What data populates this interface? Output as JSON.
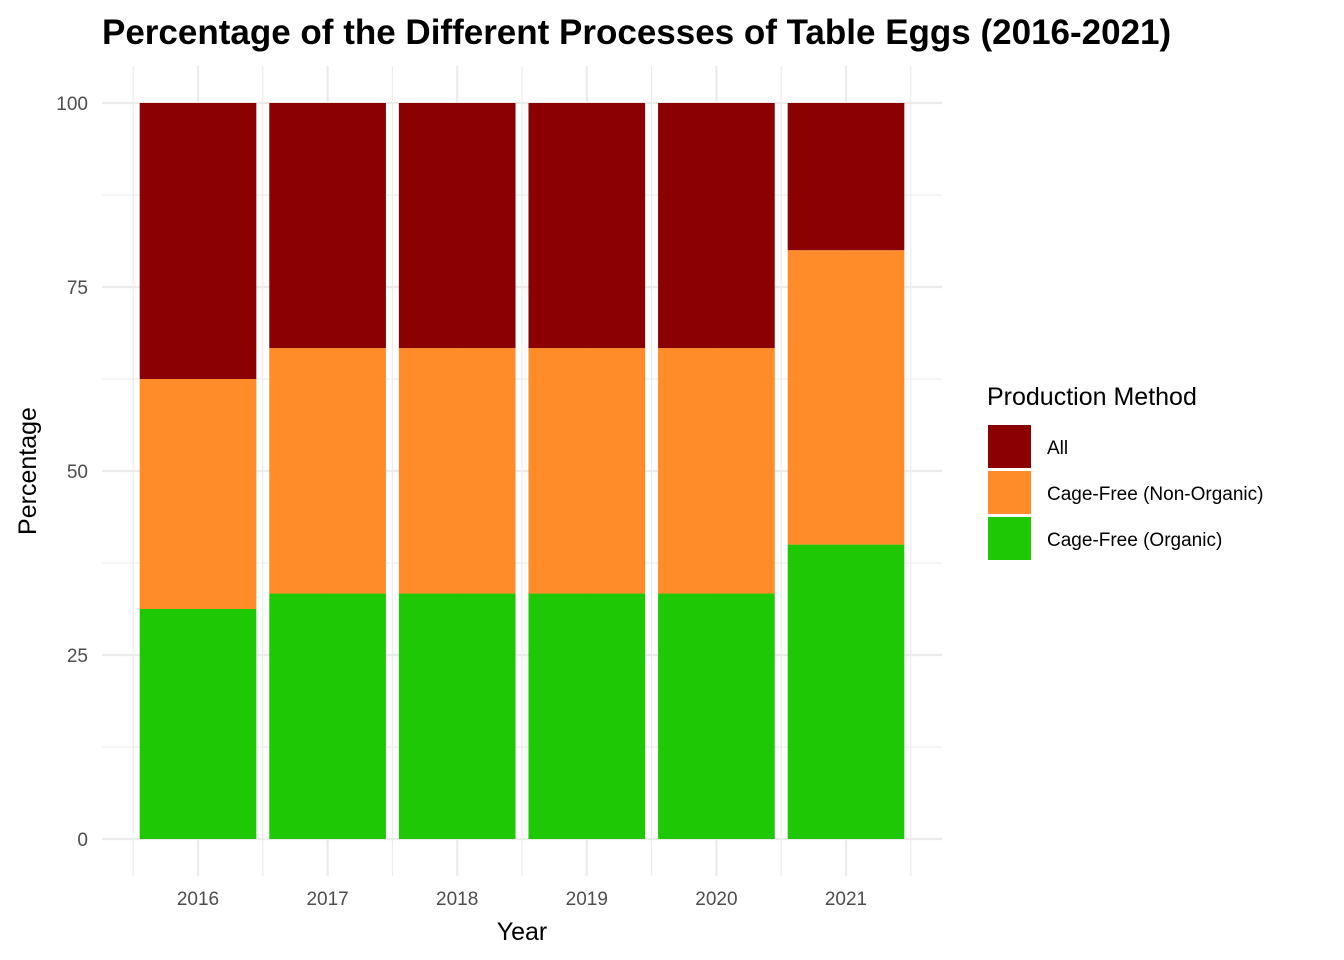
{
  "chart_data": {
    "type": "bar",
    "stacked": true,
    "title": "Percentage of the Different Processes of Table Eggs (2016-2021)",
    "xlabel": "Year",
    "ylabel": "Percentage",
    "categories": [
      "2016",
      "2017",
      "2018",
      "2019",
      "2020",
      "2021"
    ],
    "ylim": [
      0,
      100
    ],
    "yticks": [
      0,
      25,
      50,
      75,
      100
    ],
    "grid": true,
    "legend": {
      "title": "Production Method",
      "position": "right"
    },
    "series": [
      {
        "name": "All",
        "color": "#8b0000",
        "values": [
          37.5,
          33.3,
          33.3,
          33.3,
          33.3,
          20.0
        ]
      },
      {
        "name": "Cage-Free (Non-Organic)",
        "color": "#ff8c28",
        "values": [
          31.25,
          33.35,
          33.35,
          33.35,
          33.35,
          40.0
        ]
      },
      {
        "name": "Cage-Free (Organic)",
        "color": "#1ec805",
        "values": [
          31.25,
          33.35,
          33.35,
          33.35,
          33.35,
          40.0
        ]
      }
    ]
  }
}
